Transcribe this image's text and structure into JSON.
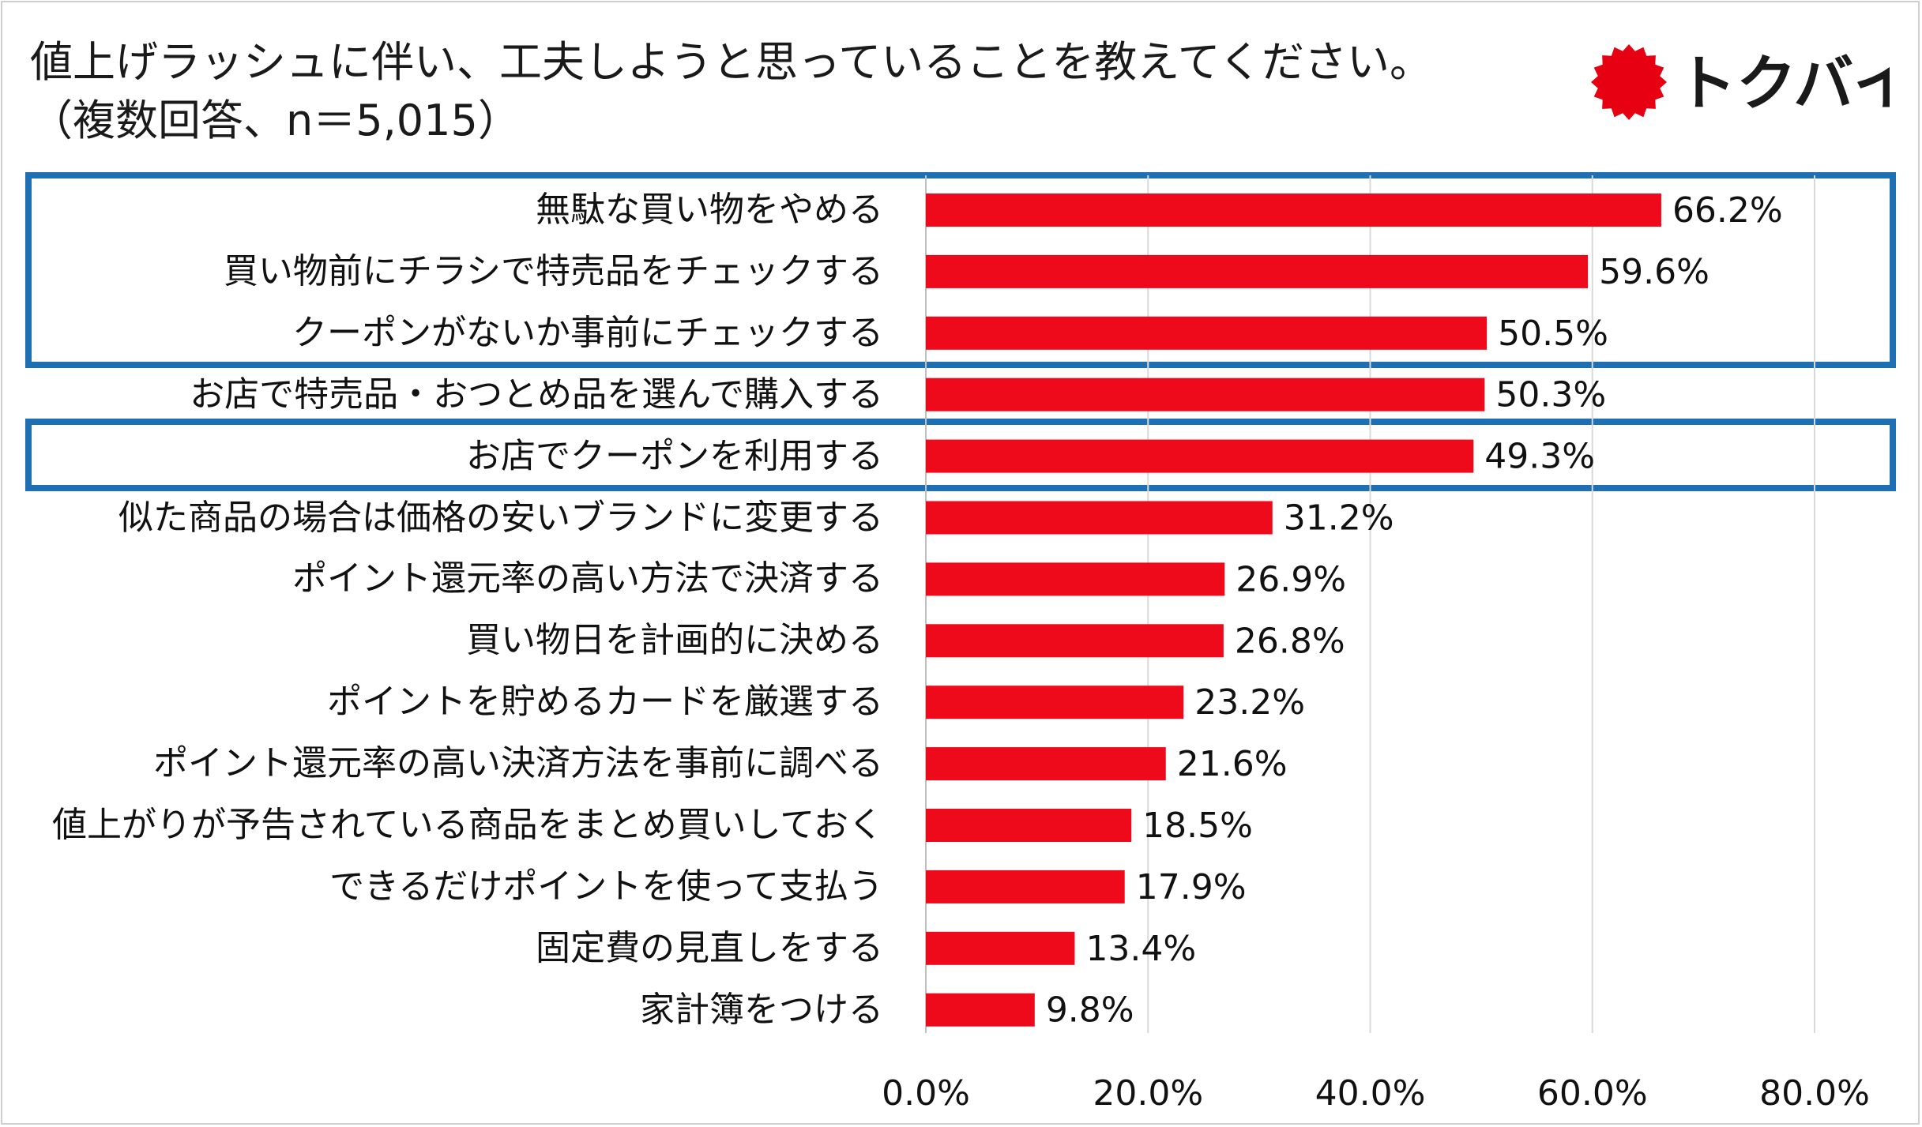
{
  "header": {
    "title": "値上げラッシュに伴い、工夫しようと思っていることを教えてください。",
    "subtitle": "（複数回答、n＝5,015）"
  },
  "logo": {
    "text": "トクバイ",
    "icon": "red-burst-icon",
    "color": "#e60012"
  },
  "colors": {
    "bar": "#ee0a1a",
    "highlight": "#1f6fb5",
    "grid": "#d9d9d9"
  },
  "chart_data": {
    "type": "bar",
    "orientation": "horizontal",
    "title": "値上げラッシュに伴い、工夫しようと思っていることを教えてください。",
    "categories": [
      "無駄な買い物をやめる",
      "買い物前にチラシで特売品をチェックする",
      "クーポンがないか事前にチェックする",
      "お店で特売品・おつとめ品を選んで購入する",
      "お店でクーポンを利用する",
      "似た商品の場合は価格の安いブランドに変更する",
      "ポイント還元率の高い方法で決済する",
      "買い物日を計画的に決める",
      "ポイントを貯めるカードを厳選する",
      "ポイント還元率の高い決済方法を事前に調べる",
      "値上がりが予告されている商品をまとめ買いしておく",
      "できるだけポイントを使って支払う",
      "固定費の見直しをする",
      "家計簿をつける"
    ],
    "values": [
      66.2,
      59.6,
      50.5,
      50.3,
      49.3,
      31.2,
      26.9,
      26.8,
      23.2,
      21.6,
      18.5,
      17.9,
      13.4,
      9.8
    ],
    "value_labels": [
      "66.2%",
      "59.6%",
      "50.5%",
      "50.3%",
      "49.3%",
      "31.2%",
      "26.9%",
      "26.8%",
      "23.2%",
      "21.6%",
      "18.5%",
      "17.9%",
      "13.4%",
      "9.8%"
    ],
    "xlim": [
      0,
      80
    ],
    "xticks": [
      0,
      20,
      40,
      60,
      80
    ],
    "xtick_labels": [
      "0.0%",
      "20.0%",
      "40.0%",
      "60.0%",
      "80.0%"
    ],
    "grid": true,
    "highlight_groups": [
      [
        0,
        1,
        2
      ],
      [
        4
      ]
    ]
  }
}
